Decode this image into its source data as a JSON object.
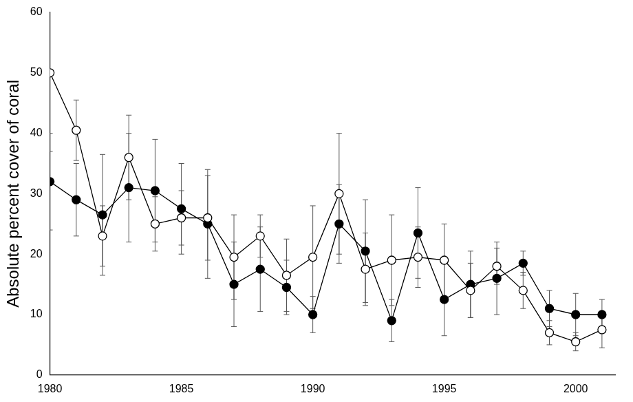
{
  "chart_data": {
    "type": "line",
    "y_label": "Absolute percent cover of coral",
    "x": [
      1980,
      1981,
      1982,
      1983,
      1984,
      1985,
      1986,
      1987,
      1988,
      1989,
      1990,
      1991,
      1992,
      1993,
      1994,
      1995,
      1996,
      1997,
      1998,
      1999,
      2000,
      2001
    ],
    "series": [
      {
        "color": "#000000",
        "marker": "open_circle",
        "line_style": "solid",
        "values": [
          50,
          40.5,
          23,
          36,
          25,
          26,
          26,
          19.5,
          23,
          16.5,
          19.5,
          30,
          17.5,
          19,
          19.5,
          19,
          14,
          18,
          14,
          7,
          5.5,
          7.5
        ],
        "errors": [
          13,
          5,
          5,
          7,
          4.5,
          4.5,
          7,
          7,
          3.5,
          6,
          8.5,
          10,
          6,
          7.5,
          5,
          6,
          4.5,
          3,
          3,
          2,
          1.5,
          3
        ]
      },
      {
        "color": "#000000",
        "marker": "circle",
        "line_style": "solid",
        "values": [
          32,
          29,
          26.5,
          31,
          30.5,
          27.5,
          25,
          15,
          17.5,
          14.5,
          10,
          25,
          20.5,
          9,
          23.5,
          12.5,
          15,
          16,
          18.5,
          11,
          10,
          10
        ],
        "errors": [
          8,
          6,
          10,
          9,
          8.5,
          7.5,
          9,
          7,
          7,
          4.5,
          3,
          6.5,
          8.5,
          3.5,
          7.5,
          6,
          5.5,
          6,
          2,
          3,
          3.5,
          2.5
        ]
      }
    ],
    "xlim": [
      1980,
      2001.5
    ],
    "xticks": [
      1980,
      1985,
      1990,
      1995,
      2000
    ],
    "ylim": [
      0,
      60
    ],
    "yticks": [
      0,
      10,
      20,
      30,
      40,
      50,
      60
    ],
    "grid": false
  }
}
